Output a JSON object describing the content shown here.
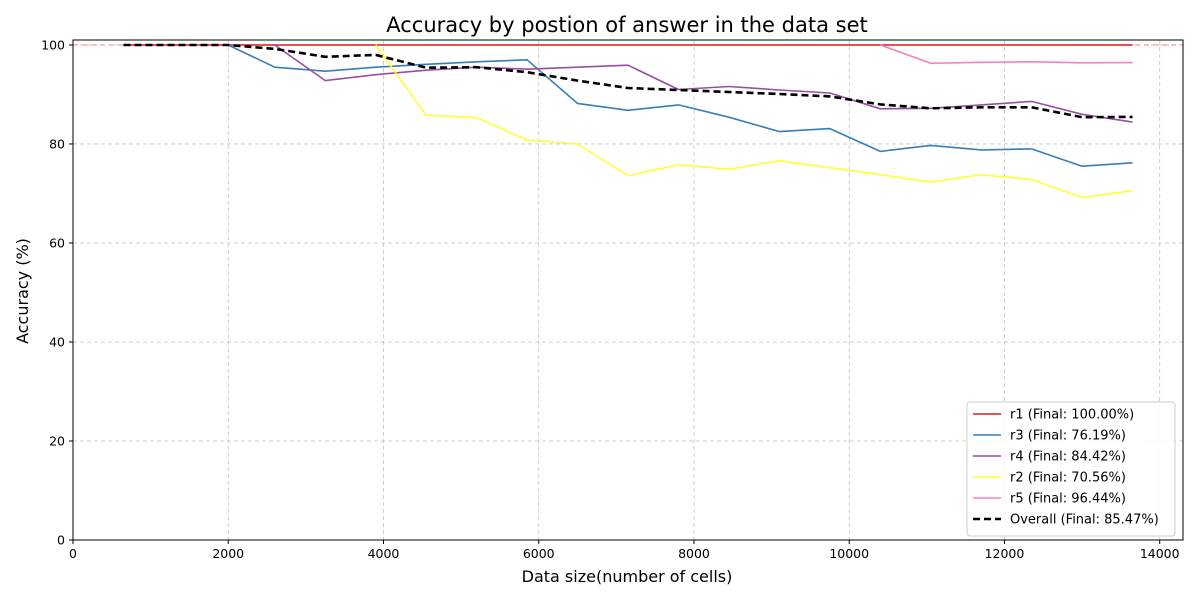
{
  "chart_data": {
    "type": "line",
    "title": "Accuracy by postion of answer in the data set",
    "xlabel": "Data size(number of cells)",
    "ylabel": "Accuracy (%)",
    "xlim": [
      0,
      14300
    ],
    "ylim": [
      0,
      101
    ],
    "xticks": [
      0,
      2000,
      4000,
      6000,
      8000,
      10000,
      12000,
      14000
    ],
    "yticks": [
      0,
      20,
      40,
      60,
      80,
      100
    ],
    "grid": true,
    "legend_position": "bottom-right",
    "reference_line": {
      "y": 100,
      "color": "#ff8a8a",
      "style": "dashed"
    },
    "series": [
      {
        "name": "r1 (Final: 100.00%)",
        "color": "#e41a1c",
        "dashed": false,
        "x": [
          650,
          2000,
          2600,
          3250,
          3900,
          4550,
          5200,
          5850,
          6500,
          7150,
          7800,
          8450,
          9100,
          9750,
          10400,
          11050,
          11700,
          12350,
          13000,
          13650
        ],
        "y": [
          100,
          100,
          100,
          100,
          100,
          100,
          100,
          100,
          100,
          100,
          100,
          100,
          100,
          100,
          100,
          100,
          100,
          100,
          100,
          100
        ]
      },
      {
        "name": "r3 (Final: 76.19%)",
        "color": "#377eb8",
        "dashed": false,
        "x": [
          2000,
          2600,
          3250,
          3900,
          4550,
          5200,
          5850,
          6500,
          7150,
          7800,
          8450,
          9100,
          9750,
          10400,
          11050,
          11700,
          12350,
          13000,
          13650
        ],
        "y": [
          100,
          95.5,
          94.7,
          95.5,
          96.1,
          96.6,
          97.0,
          88.2,
          86.8,
          87.9,
          85.4,
          82.5,
          83.1,
          78.5,
          79.7,
          78.8,
          79.0,
          75.5,
          76.19
        ]
      },
      {
        "name": "r4 (Final: 84.42%)",
        "color": "#984ea3",
        "dashed": false,
        "x": [
          2600,
          3250,
          3900,
          4550,
          5200,
          5850,
          6500,
          7150,
          7800,
          8450,
          9100,
          9750,
          10400,
          11050,
          11700,
          12350,
          13000,
          13650
        ],
        "y": [
          100,
          92.8,
          94.0,
          94.9,
          95.5,
          95.1,
          95.5,
          95.9,
          91.0,
          91.6,
          90.9,
          90.3,
          87.1,
          87.2,
          87.9,
          88.6,
          86.0,
          84.42
        ]
      },
      {
        "name": "r2 (Final: 70.56%)",
        "color": "#ffff33",
        "dashed": false,
        "x": [
          3900,
          4550,
          5200,
          5850,
          6500,
          7150,
          7800,
          8450,
          9100,
          9750,
          10400,
          11050,
          11700,
          12350,
          13000,
          13650
        ],
        "y": [
          100,
          85.8,
          85.3,
          80.8,
          80.0,
          73.6,
          75.8,
          74.9,
          76.6,
          75.2,
          73.8,
          72.3,
          73.8,
          72.8,
          69.2,
          70.56
        ]
      },
      {
        "name": "r5 (Final: 96.44%)",
        "color": "#f781bf",
        "dashed": false,
        "x": [
          10400,
          11050,
          11700,
          12350,
          13000,
          13650
        ],
        "y": [
          100,
          96.3,
          96.5,
          96.6,
          96.4,
          96.44
        ]
      },
      {
        "name": "Overall (Final: 85.47%)",
        "color": "#000000",
        "dashed": true,
        "x": [
          650,
          2000,
          2600,
          3250,
          3900,
          4550,
          5200,
          5850,
          6500,
          7150,
          7800,
          8450,
          9100,
          9750,
          10400,
          11050,
          11700,
          12350,
          13000,
          13650
        ],
        "y": [
          100,
          100,
          99.2,
          97.6,
          98.0,
          95.4,
          95.5,
          94.5,
          92.8,
          91.3,
          90.9,
          90.5,
          90.1,
          89.6,
          88.0,
          87.2,
          87.4,
          87.4,
          85.4,
          85.47
        ]
      }
    ]
  }
}
